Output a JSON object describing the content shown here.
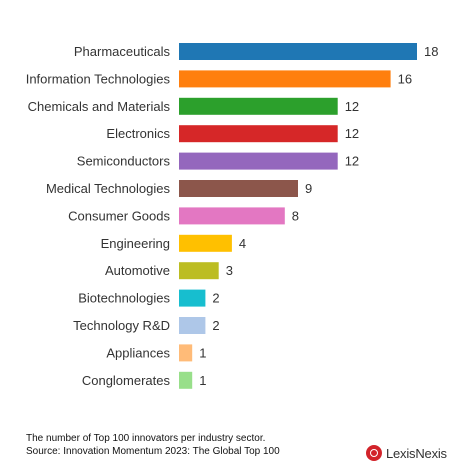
{
  "chart_data": {
    "type": "bar",
    "orientation": "horizontal",
    "categories": [
      "Pharmaceuticals",
      "Information Technologies",
      "Chemicals and Materials",
      "Electronics",
      "Semiconductors",
      "Medical Technologies",
      "Consumer Goods",
      "Engineering",
      "Automotive",
      "Biotechnologies",
      "Technology R&D",
      "Appliances",
      "Conglomerates"
    ],
    "values": [
      18,
      16,
      12,
      12,
      12,
      9,
      8,
      4,
      3,
      2,
      2,
      1,
      1
    ],
    "colors": [
      "#1f77b4",
      "#ff7f0e",
      "#2ca02c",
      "#d62728",
      "#9467bd",
      "#8c564b",
      "#e377c2",
      "#ffc000",
      "#bcbd22",
      "#17becf",
      "#aec7e8",
      "#ffbb78",
      "#98df8a"
    ],
    "xlim": [
      0,
      18
    ],
    "grid": false,
    "legend": "none"
  },
  "footer": {
    "caption": "The number of Top 100 innovators per industry sector.",
    "source": "Source: Innovation Momentum 2023: The Global Top 100"
  },
  "logo": {
    "text": "LexisNexis"
  }
}
